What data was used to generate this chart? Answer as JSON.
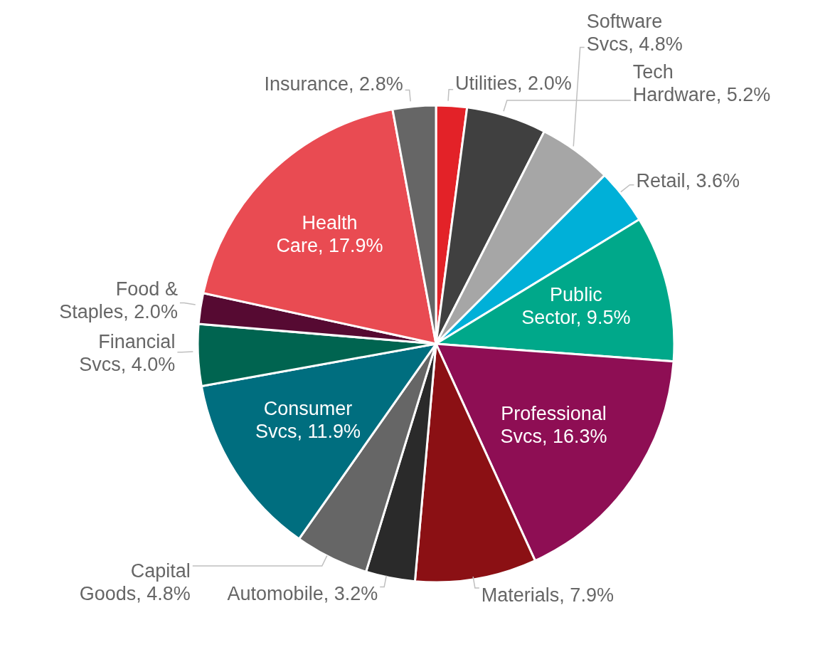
{
  "chart_data": {
    "type": "pie",
    "categories": [
      "Utilities",
      "Tech Hardware",
      "Software Svcs",
      "Retail",
      "Public Sector",
      "Professional Svcs",
      "Materials",
      "Automobile",
      "Capital Goods",
      "Consumer Svcs",
      "Financial Svcs",
      "Food & Staples",
      "Health Care",
      "Insurance"
    ],
    "values": [
      2.0,
      5.2,
      4.8,
      3.6,
      9.5,
      16.3,
      7.9,
      3.2,
      4.8,
      11.9,
      4.0,
      2.0,
      17.9,
      2.8
    ],
    "value_labels": [
      "2.0%",
      "5.2%",
      "4.8%",
      "3.6%",
      "9.5%",
      "16.3%",
      "7.9%",
      "3.2%",
      "4.8%",
      "11.9%",
      "4.0%",
      "2.0%",
      "17.9%",
      "2.8%"
    ],
    "colors": [
      "#e32228",
      "#404040",
      "#a6a6a6",
      "#00b0d8",
      "#00a88a",
      "#8e0e54",
      "#8b1014",
      "#2a2a2a",
      "#666666",
      "#006e7f",
      "#006450",
      "#560a32",
      "#e94b52",
      "#666666"
    ],
    "legend": false
  }
}
